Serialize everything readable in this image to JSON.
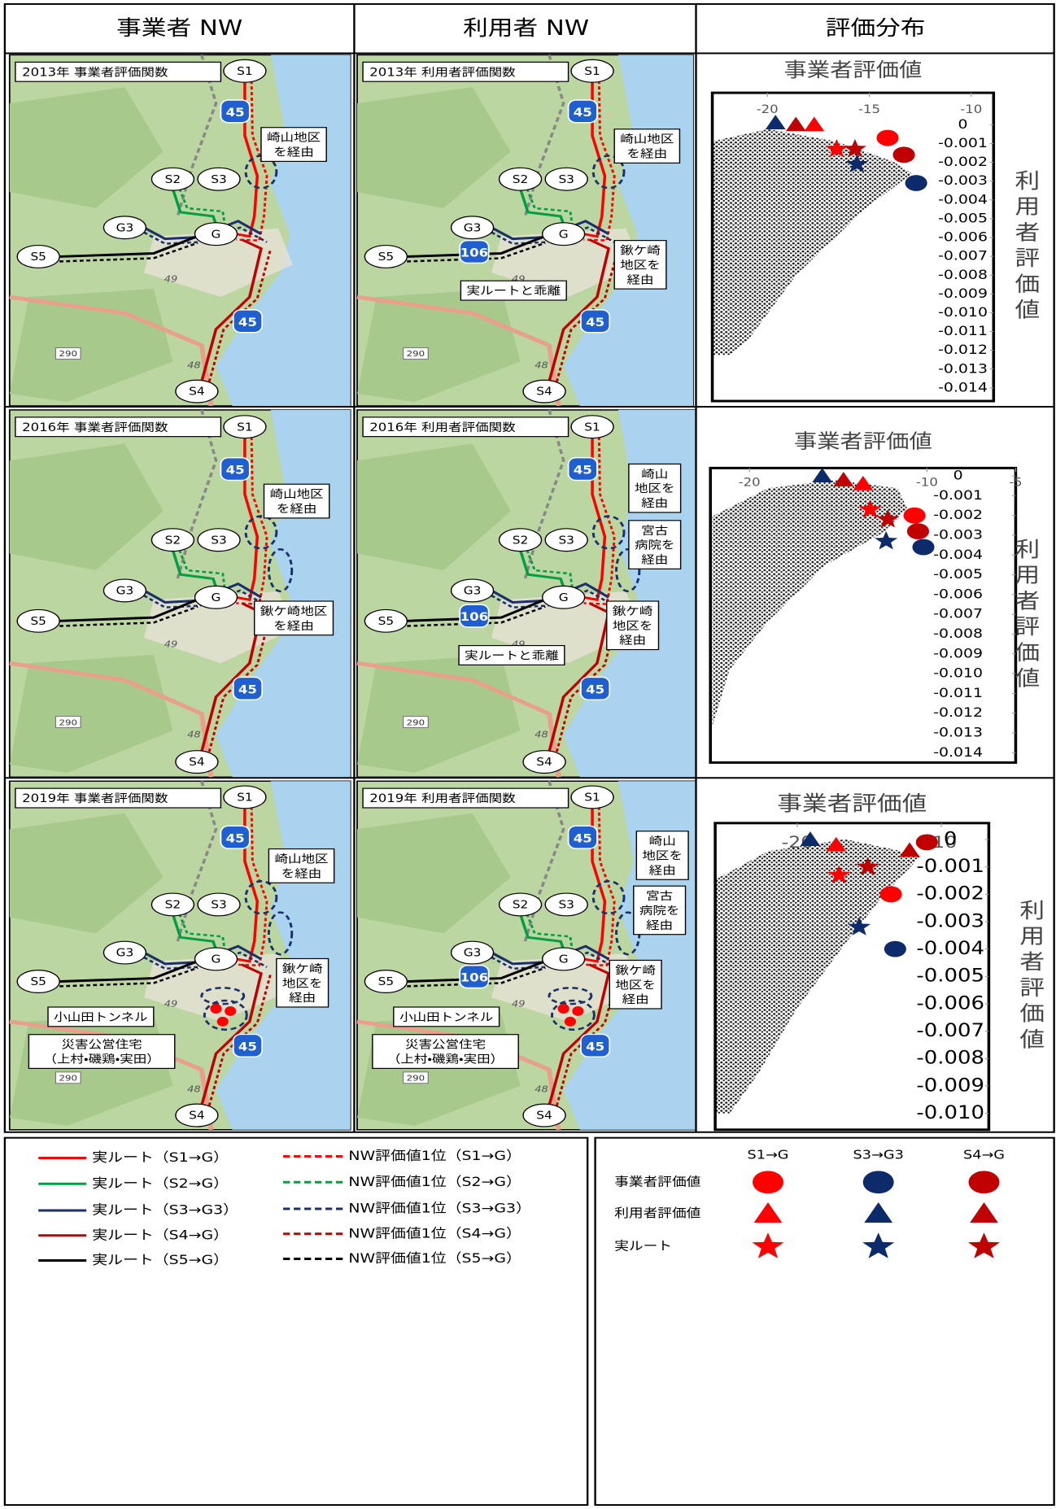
{
  "header": {
    "columns": [
      "事業者 NW",
      "利用者 NW",
      "評価分布"
    ]
  },
  "map_nodes": [
    "S1",
    "S2",
    "S3",
    "G3",
    "G",
    "S5",
    "S4"
  ],
  "road_labels": [
    45,
    106,
    290,
    49,
    48
  ],
  "rows": [
    {
      "operator_map": {
        "title": "2013年 事業者評価関数",
        "annotations": [
          [
            "崎山地区",
            "を経由"
          ]
        ]
      },
      "user_map": {
        "title": "2013年 利用者評価関数",
        "annotations": [
          [
            "崎山地区",
            "を経由"
          ],
          [
            "鍬ケ崎",
            "地区を",
            "経由"
          ],
          [
            "実ルートと乖離"
          ]
        ]
      }
    },
    {
      "operator_map": {
        "title": "2016年 事業者評価関数",
        "annotations": [
          [
            "崎山地区",
            "を経由"
          ],
          [
            "鍬ケ崎地区",
            "を経由"
          ]
        ]
      },
      "user_map": {
        "title": "2016年 利用者評価関数",
        "annotations": [
          [
            "崎山",
            "地区を",
            "経由"
          ],
          [
            "宮古",
            "病院を",
            "経由"
          ],
          [
            "鍬ケ崎",
            "地区を",
            "経由"
          ],
          [
            "実ルートと乖離"
          ]
        ]
      }
    },
    {
      "operator_map": {
        "title": "2019年 事業者評価関数",
        "annotations": [
          [
            "崎山地区",
            "を経由"
          ],
          [
            "鍬ケ崎",
            "地区を",
            "経由"
          ],
          [
            "小山田トンネル"
          ],
          [
            "災害公営住宅",
            "（上村・磯鶏・実田）"
          ]
        ]
      },
      "user_map": {
        "title": "2019年 利用者評価関数",
        "annotations": [
          [
            "崎山",
            "地区を",
            "経由"
          ],
          [
            "宮古",
            "病院を",
            "経由"
          ],
          [
            "鍬ケ崎",
            "地区を",
            "経由"
          ],
          [
            "小山田トンネル"
          ],
          [
            "災害公営住宅",
            "（上村・磯鶏・実田）"
          ]
        ]
      }
    }
  ],
  "chart_data": [
    {
      "type": "scatter",
      "title": "事業者評価値",
      "y_label": "利用者評価値",
      "xlim": [
        -22.7,
        -8.9
      ],
      "ylim": [
        -0.0147,
        0.0017
      ],
      "xticks": [
        -20,
        -15,
        -10
      ],
      "yticks": [
        0,
        -0.001,
        -0.002,
        -0.003,
        -0.004,
        -0.005,
        -0.006,
        -0.007,
        -0.008,
        -0.009,
        {
          "value": -0.01,
          "label": "-0.010"
        },
        -0.011,
        -0.012,
        -0.013,
        -0.014
      ],
      "markers": [
        "circle",
        "triangle",
        "star"
      ],
      "series": [
        {
          "color": "#ff0000",
          "x": [
            -14.1,
            -17.7,
            -16.6
          ],
          "values": [
            -0.0007,
            0,
            -0.0013
          ]
        },
        {
          "color": "#0d2a6b",
          "x": [
            -12.7,
            -19.6,
            -15.6
          ],
          "values": [
            -0.0031,
            0.0001,
            -0.0021
          ]
        },
        {
          "color": "#c00000",
          "x": [
            -13.3,
            -18.6,
            -15.7
          ],
          "values": [
            -0.0016,
            0,
            -0.0013
          ]
        }
      ]
    },
    {
      "type": "scatter",
      "title": "事業者評価値",
      "y_label": "利用者評価値",
      "xlim": [
        -22.2,
        -5
      ],
      "ylim": [
        -0.0145,
        0.0004
      ],
      "xticks": [
        -20,
        -10,
        -5
      ],
      "yticks": [
        0,
        -0.001,
        -0.002,
        -0.003,
        -0.004,
        -0.005,
        -0.006,
        -0.007,
        -0.008,
        -0.009,
        {
          "value": -0.01,
          "label": "-0.010"
        },
        -0.011,
        -0.012,
        -0.013,
        -0.014
      ],
      "markers": [
        "circle",
        "triangle",
        "star"
      ],
      "series": [
        {
          "color": "#ff0000",
          "x": [
            -10.7,
            -13.6,
            -13.2
          ],
          "values": [
            -0.002,
            -0.0004,
            -0.0017
          ]
        },
        {
          "color": "#0d2a6b",
          "x": [
            -10.2,
            -15.9,
            -12.3
          ],
          "values": [
            -0.0036,
            0,
            -0.0033
          ]
        },
        {
          "color": "#c00000",
          "x": [
            -10.5,
            -14.7,
            -12.2
          ],
          "values": [
            -0.0028,
            -0.0002,
            -0.0022
          ]
        }
      ]
    },
    {
      "type": "scatter",
      "title": "事業者評価値",
      "y_label": "利用者評価値",
      "xlim": [
        -25.7,
        -6.7
      ],
      "ylim": [
        -0.0106,
        0.0006
      ],
      "xticks": [
        -20,
        -10
      ],
      "yticks": [
        0,
        -0.001,
        -0.002,
        -0.003,
        -0.004,
        -0.005,
        -0.006,
        -0.007,
        -0.008,
        -0.009,
        {
          "value": -0.01,
          "label": "-0.010"
        }
      ],
      "markers": [
        "circle",
        "triangle",
        "star"
      ],
      "series": [
        {
          "color": "#ff0000",
          "x": [
            -13.5,
            -17.3,
            -17.1
          ],
          "values": [
            -0.002,
            -0.0002,
            -0.0013
          ]
        },
        {
          "color": "#0d2a6b",
          "x": [
            -13.2,
            -19.1,
            -15.7
          ],
          "values": [
            -0.004,
            0,
            -0.0032
          ]
        },
        {
          "color": "#c00000",
          "x": [
            -11,
            -12.2,
            -15.1
          ],
          "values": [
            -0.0001,
            -0.0004,
            -0.001
          ]
        }
      ]
    }
  ],
  "route_legend": [
    {
      "color": "#ff0000",
      "real": "実ルート（S1→G）",
      "nw": "NW評価値1位（S1→G）"
    },
    {
      "color": "#00a040",
      "real": "実ルート（S2→G）",
      "nw": "NW評価値1位（S2→G）"
    },
    {
      "color": "#1a2f6b",
      "real": "実ルート（S3→G3）",
      "nw": "NW評価値1位（S3→G3）"
    },
    {
      "color": "#c00000",
      "real": "実ルート（S4→G）",
      "nw": "NW評価値1位（S4→G）"
    },
    {
      "color": "#000000",
      "real": "実ルート（S5→G）",
      "nw": "NW評価値1位（S5→G）"
    }
  ],
  "marker_legend": {
    "columns": [
      "S1→G",
      "S3→G3",
      "S4→G"
    ],
    "colors": [
      "#ff0000",
      "#0d2a6b",
      "#c00000"
    ],
    "rows": [
      "事業者評価値",
      "利用者評価値",
      "実ルート"
    ],
    "markers": [
      "circle",
      "triangle",
      "star"
    ]
  }
}
